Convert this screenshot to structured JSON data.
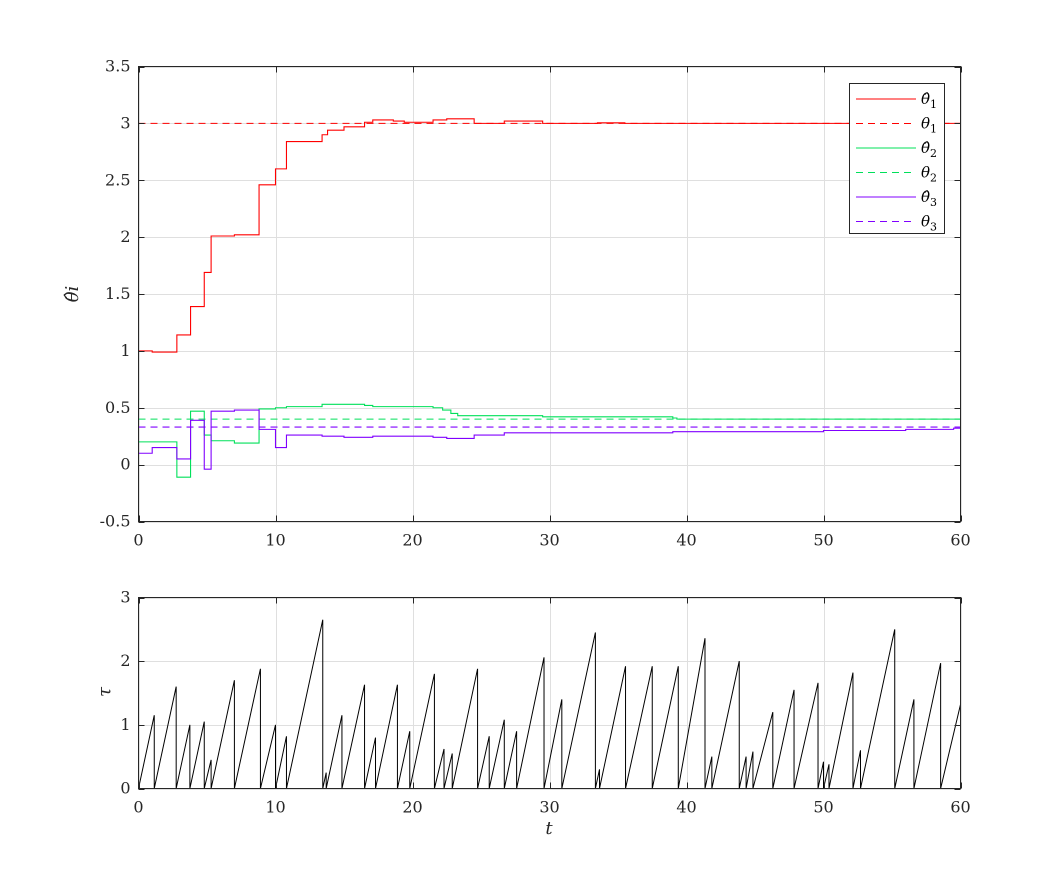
{
  "chart_data": [
    {
      "type": "line",
      "ylabel": "θ̂i",
      "xlim": [
        0,
        60
      ],
      "ylim": [
        -0.5,
        3.5
      ],
      "xticks": [
        "0",
        "10",
        "20",
        "30",
        "40",
        "50",
        "60"
      ],
      "yticks": [
        "-0.5",
        "0",
        "0.5",
        "1",
        "1.5",
        "2",
        "2.5",
        "3",
        "3.5"
      ],
      "grid": true,
      "legend_position": "top-right",
      "series": [
        {
          "name": "θ̂1",
          "legend_main": "θ̂",
          "legend_sub": "1",
          "color": "#ff0000",
          "dash": "solid",
          "step": true,
          "points": [
            [
              0,
              1
            ],
            [
              1,
              0.99
            ],
            [
              2.8,
              1.14
            ],
            [
              3.8,
              1.39
            ],
            [
              4.8,
              1.69
            ],
            [
              5.3,
              2.01
            ],
            [
              7,
              2.02
            ],
            [
              8.8,
              2.46
            ],
            [
              10,
              2.6
            ],
            [
              10.8,
              2.84
            ],
            [
              13.4,
              2.9
            ],
            [
              13.8,
              2.94
            ],
            [
              15,
              2.97
            ],
            [
              16.5,
              3.01
            ],
            [
              17.1,
              3.03
            ],
            [
              18.6,
              3.02
            ],
            [
              19.4,
              3.01
            ],
            [
              21.5,
              3.03
            ],
            [
              22.5,
              3.04
            ],
            [
              24.5,
              3.0
            ],
            [
              26.7,
              3.02
            ],
            [
              29.5,
              3.0
            ],
            [
              33.5,
              3.005
            ],
            [
              35.5,
              3.0
            ],
            [
              60,
              3.0
            ]
          ]
        },
        {
          "name": "θ1",
          "legend_main": "θ",
          "legend_sub": "1",
          "color": "#ff0000",
          "dash": "dashed",
          "step": false,
          "points": [
            [
              0,
              3
            ],
            [
              60,
              3
            ]
          ]
        },
        {
          "name": "θ̂2",
          "legend_main": "θ̂",
          "legend_sub": "2",
          "color": "#00e05a",
          "dash": "solid",
          "step": true,
          "points": [
            [
              0,
              0.2
            ],
            [
              2.8,
              -0.11
            ],
            [
              3.8,
              0.47
            ],
            [
              4.8,
              0.26
            ],
            [
              5.3,
              0.21
            ],
            [
              7,
              0.19
            ],
            [
              8.8,
              0.49
            ],
            [
              10,
              0.5
            ],
            [
              10.8,
              0.51
            ],
            [
              13.4,
              0.53
            ],
            [
              16.5,
              0.52
            ],
            [
              17.1,
              0.51
            ],
            [
              21.5,
              0.5
            ],
            [
              22.2,
              0.48
            ],
            [
              22.8,
              0.45
            ],
            [
              23.3,
              0.43
            ],
            [
              29.5,
              0.42
            ],
            [
              39,
              0.41
            ],
            [
              39.3,
              0.4
            ],
            [
              60,
              0.4
            ]
          ]
        },
        {
          "name": "θ2",
          "legend_main": "θ",
          "legend_sub": "2",
          "color": "#00e05a",
          "dash": "dashed",
          "step": false,
          "points": [
            [
              0,
              0.4
            ],
            [
              60,
              0.4
            ]
          ]
        },
        {
          "name": "θ̂3",
          "legend_main": "θ̂",
          "legend_sub": "3",
          "color": "#8000ff",
          "dash": "solid",
          "step": true,
          "points": [
            [
              0,
              0.1
            ],
            [
              1,
              0.15
            ],
            [
              2.8,
              0.05
            ],
            [
              3.8,
              0.39
            ],
            [
              4.8,
              -0.04
            ],
            [
              5.3,
              0.47
            ],
            [
              7,
              0.48
            ],
            [
              8.8,
              0.31
            ],
            [
              10,
              0.15
            ],
            [
              10.8,
              0.26
            ],
            [
              13.4,
              0.25
            ],
            [
              15,
              0.24
            ],
            [
              17.1,
              0.25
            ],
            [
              21.5,
              0.24
            ],
            [
              22.5,
              0.23
            ],
            [
              24.5,
              0.26
            ],
            [
              26.7,
              0.28
            ],
            [
              39,
              0.29
            ],
            [
              50,
              0.3
            ],
            [
              56,
              0.31
            ],
            [
              59.5,
              0.32
            ],
            [
              60,
              0.32
            ]
          ]
        },
        {
          "name": "θ3",
          "legend_main": "θ",
          "legend_sub": "3",
          "color": "#8000ff",
          "dash": "dashed",
          "step": false,
          "points": [
            [
              0,
              0.33
            ],
            [
              60,
              0.33
            ]
          ]
        }
      ]
    },
    {
      "type": "line",
      "xlabel": "t",
      "ylabel": "τ",
      "xlim": [
        0,
        60
      ],
      "ylim": [
        0,
        3
      ],
      "xticks": [
        "0",
        "10",
        "20",
        "30",
        "40",
        "50",
        "60"
      ],
      "yticks": [
        "0",
        "1",
        "2",
        "3"
      ],
      "grid": true,
      "series": [
        {
          "name": "",
          "color": "#000000",
          "events": [
            0,
            1.15,
            2.75,
            3.75,
            4.8,
            5.3,
            7.0,
            8.9,
            10.0,
            10.8,
            13.45,
            13.7,
            14.85,
            16.5,
            17.3,
            18.9,
            19.8,
            21.6,
            22.3,
            22.9,
            24.75,
            25.6,
            26.7,
            27.6,
            29.6,
            30.9,
            33.35,
            33.65,
            35.55,
            37.5,
            39.4,
            41.35,
            41.85,
            43.85,
            44.35,
            44.85,
            46.3,
            47.85,
            49.6,
            50.0,
            50.4,
            52.15,
            52.7,
            55.2,
            56.6,
            58.55
          ],
          "peaks": [
            1.15,
            1.6,
            1.0,
            1.05,
            0.45,
            1.7,
            1.88,
            1.0,
            0.82,
            2.65,
            0.25,
            1.15,
            1.63,
            0.8,
            1.63,
            0.9,
            1.8,
            0.62,
            0.55,
            1.88,
            0.82,
            1.08,
            0.9,
            2.06,
            1.4,
            2.45,
            0.3,
            1.92,
            1.92,
            1.92,
            2.36,
            0.5,
            2.0,
            0.5,
            0.58,
            1.2,
            1.55,
            1.66,
            0.42,
            0.38,
            1.82,
            0.6,
            2.5,
            1.4,
            1.97,
            1.32
          ]
        }
      ]
    }
  ]
}
